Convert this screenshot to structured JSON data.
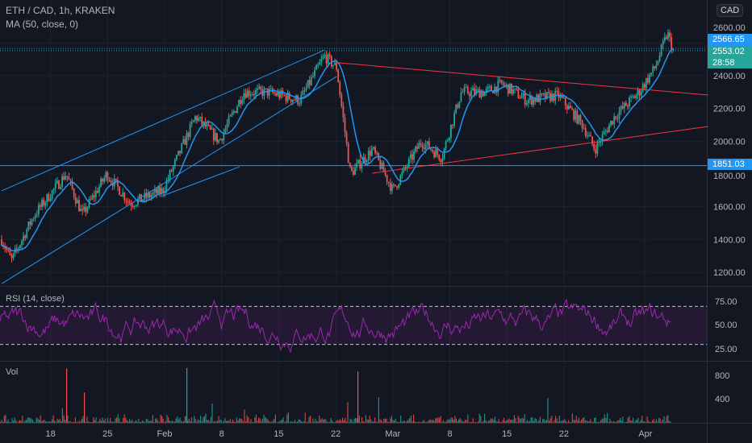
{
  "header": {
    "title": "ETH / CAD, 1h, KRAKEN",
    "ma_label": "MA (50, close, 0)",
    "currency": "CAD"
  },
  "price_tags": {
    "last": "2566.65",
    "close": "2553.02",
    "countdown": "28:58",
    "level": "1851.03"
  },
  "rsi": {
    "label": "RSI (14, close)",
    "ticks": [
      "75.00",
      "50.00",
      "25.00"
    ]
  },
  "vol": {
    "label": "Vol",
    "ticks": [
      "800",
      "400"
    ]
  },
  "colors": {
    "up": "#26a69a",
    "down": "#ef5350",
    "ma": "#2196f3",
    "rsi": "#9c27b0",
    "trend_blue": "#2196f3",
    "trend_red": "#f23645"
  },
  "chart_data": {
    "type": "candlestick",
    "title": "ETH / CAD, 1h, KRAKEN",
    "x_ticks": [
      {
        "day": 6,
        "label": "18"
      },
      {
        "day": 13,
        "label": "25"
      },
      {
        "day": 20,
        "label": "Feb"
      },
      {
        "day": 27,
        "label": "8"
      },
      {
        "day": 34,
        "label": "15"
      },
      {
        "day": 41,
        "label": "22"
      },
      {
        "day": 48,
        "label": "Mar"
      },
      {
        "day": 55,
        "label": "8"
      },
      {
        "day": 62,
        "label": "15"
      },
      {
        "day": 69,
        "label": "22"
      },
      {
        "day": 79,
        "label": "Apr"
      }
    ],
    "y_ticks": [
      2600,
      2400,
      2200,
      2000,
      1800,
      1600,
      1400,
      1200
    ],
    "ylim": [
      1130,
      2700
    ],
    "price_path": [
      [
        0,
        1400
      ],
      [
        1.2,
        1270
      ],
      [
        4,
        1550
      ],
      [
        7.9,
        1800
      ],
      [
        9.9,
        1550
      ],
      [
        12.9,
        1800
      ],
      [
        15.8,
        1620
      ],
      [
        19.8,
        1700
      ],
      [
        23.8,
        2150
      ],
      [
        26.7,
        2000
      ],
      [
        29.7,
        2300
      ],
      [
        32.7,
        2300
      ],
      [
        36.6,
        2250
      ],
      [
        39.6,
        2520
      ],
      [
        41.1,
        2450
      ],
      [
        42.8,
        1800
      ],
      [
        45.5,
        1950
      ],
      [
        48,
        1700
      ],
      [
        51.5,
        2000
      ],
      [
        54,
        1900
      ],
      [
        56.4,
        2300
      ],
      [
        59.4,
        2300
      ],
      [
        61.4,
        2350
      ],
      [
        64.4,
        2250
      ],
      [
        68.3,
        2280
      ],
      [
        71.3,
        2100
      ],
      [
        72.8,
        1950
      ],
      [
        75.2,
        2150
      ],
      [
        78.2,
        2300
      ],
      [
        80.2,
        2450
      ],
      [
        81.7,
        2660
      ],
      [
        82.4,
        2553
      ]
    ],
    "trendlines": [
      {
        "color": "blue",
        "from": [
          0,
          1130
        ],
        "to": [
          41.1,
          2395
        ]
      },
      {
        "color": "blue",
        "from": [
          0,
          1697
        ],
        "to": [
          39.6,
          2556
        ]
      },
      {
        "color": "blue",
        "from": [
          19.8,
          1667
        ],
        "to": [
          29.2,
          1844
        ]
      },
      {
        "color": "red",
        "from": [
          41.1,
          2480
        ],
        "to": [
          86.7,
          2282
        ]
      },
      {
        "color": "red",
        "from": [
          45.5,
          1805
        ],
        "to": [
          86.7,
          2090
        ]
      }
    ],
    "hlines": [
      {
        "price": 1851.03,
        "style": "solid"
      },
      {
        "price": 2566.65,
        "style": "dotted"
      },
      {
        "price": 2553.02,
        "style": "dotted"
      }
    ],
    "rsi_bands": [
      70,
      30
    ]
  }
}
